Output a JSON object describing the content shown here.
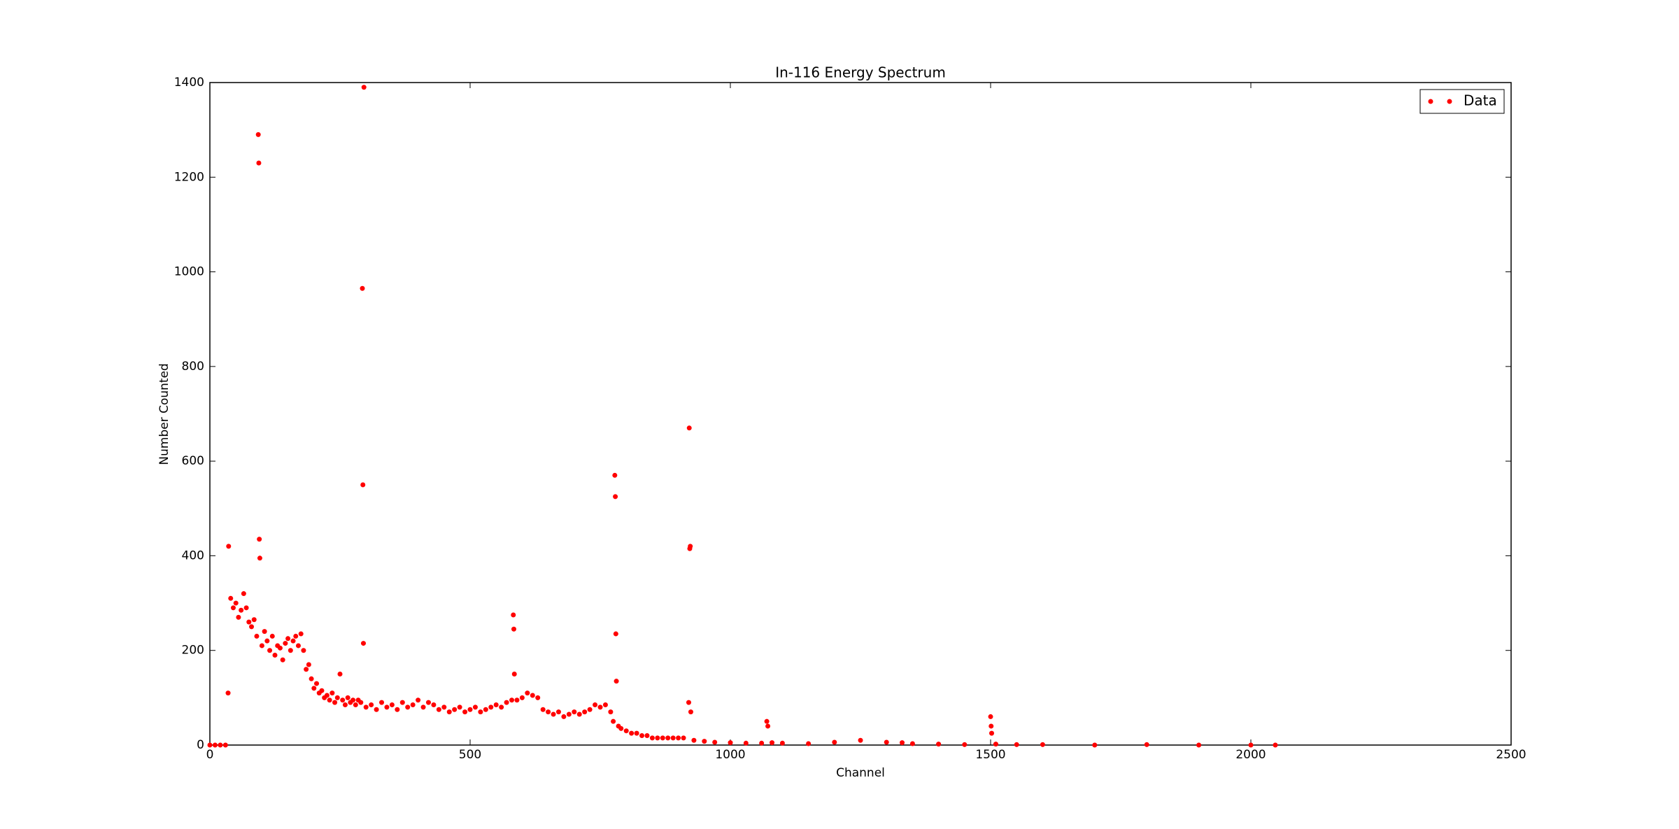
{
  "chart_data": {
    "type": "scatter",
    "title": "In-116 Energy Spectrum",
    "x_label": "Channel",
    "y_label": "Number Counted",
    "xlim": [
      0,
      2500
    ],
    "ylim": [
      0,
      1400
    ],
    "xticks": [
      0,
      500,
      1000,
      1500,
      2000,
      2500
    ],
    "yticks": [
      0,
      200,
      400,
      600,
      800,
      1000,
      1200,
      1400
    ],
    "grid": false,
    "legend": "upper right",
    "series": [
      {
        "name": "Data",
        "color": "#ff0000",
        "x": [
          0,
          10,
          20,
          30,
          35,
          36,
          40,
          45,
          50,
          55,
          60,
          65,
          70,
          75,
          80,
          85,
          90,
          93,
          94,
          95,
          96,
          100,
          105,
          110,
          115,
          120,
          125,
          130,
          135,
          140,
          145,
          150,
          155,
          160,
          165,
          170,
          175,
          180,
          185,
          190,
          195,
          200,
          205,
          210,
          215,
          220,
          225,
          230,
          235,
          240,
          245,
          250,
          255,
          260,
          265,
          270,
          275,
          280,
          285,
          290,
          293,
          294,
          295,
          296,
          300,
          310,
          320,
          330,
          340,
          350,
          360,
          370,
          380,
          390,
          400,
          410,
          420,
          430,
          440,
          450,
          460,
          470,
          480,
          490,
          500,
          510,
          520,
          530,
          540,
          550,
          560,
          570,
          580,
          583,
          584,
          585,
          590,
          600,
          610,
          620,
          630,
          640,
          650,
          660,
          670,
          680,
          690,
          700,
          710,
          720,
          730,
          740,
          750,
          760,
          770,
          775,
          778,
          779,
          780,
          781,
          785,
          790,
          800,
          810,
          820,
          830,
          840,
          850,
          860,
          870,
          880,
          890,
          900,
          910,
          920,
          921,
          922,
          923,
          924,
          930,
          950,
          970,
          1000,
          1030,
          1060,
          1070,
          1072,
          1080,
          1100,
          1150,
          1200,
          1250,
          1300,
          1330,
          1350,
          1400,
          1450,
          1500,
          1501,
          1502,
          1510,
          1550,
          1600,
          1700,
          1800,
          1900,
          2000,
          2047
        ],
        "values": [
          0,
          0,
          0,
          0,
          110,
          420,
          310,
          290,
          300,
          270,
          285,
          320,
          290,
          260,
          250,
          265,
          230,
          1290,
          1230,
          435,
          395,
          210,
          240,
          220,
          200,
          230,
          190,
          210,
          205,
          180,
          215,
          225,
          200,
          220,
          230,
          210,
          235,
          200,
          160,
          170,
          140,
          120,
          130,
          110,
          115,
          100,
          105,
          95,
          110,
          90,
          100,
          150,
          95,
          85,
          100,
          90,
          95,
          85,
          95,
          90,
          965,
          550,
          215,
          1390,
          80,
          85,
          75,
          90,
          80,
          85,
          75,
          90,
          80,
          85,
          95,
          80,
          90,
          85,
          75,
          80,
          70,
          75,
          80,
          70,
          75,
          80,
          70,
          75,
          80,
          85,
          80,
          90,
          95,
          275,
          245,
          150,
          95,
          100,
          110,
          105,
          100,
          75,
          70,
          65,
          70,
          60,
          65,
          70,
          65,
          70,
          75,
          85,
          80,
          85,
          70,
          50,
          570,
          525,
          235,
          135,
          40,
          35,
          30,
          25,
          25,
          20,
          20,
          15,
          15,
          15,
          15,
          15,
          15,
          15,
          90,
          670,
          415,
          420,
          70,
          10,
          8,
          6,
          5,
          4,
          4,
          50,
          40,
          5,
          4,
          3,
          6,
          10,
          6,
          5,
          3,
          2,
          1,
          60,
          40,
          25,
          2,
          1,
          1,
          0,
          1,
          0,
          0,
          0
        ]
      }
    ]
  }
}
